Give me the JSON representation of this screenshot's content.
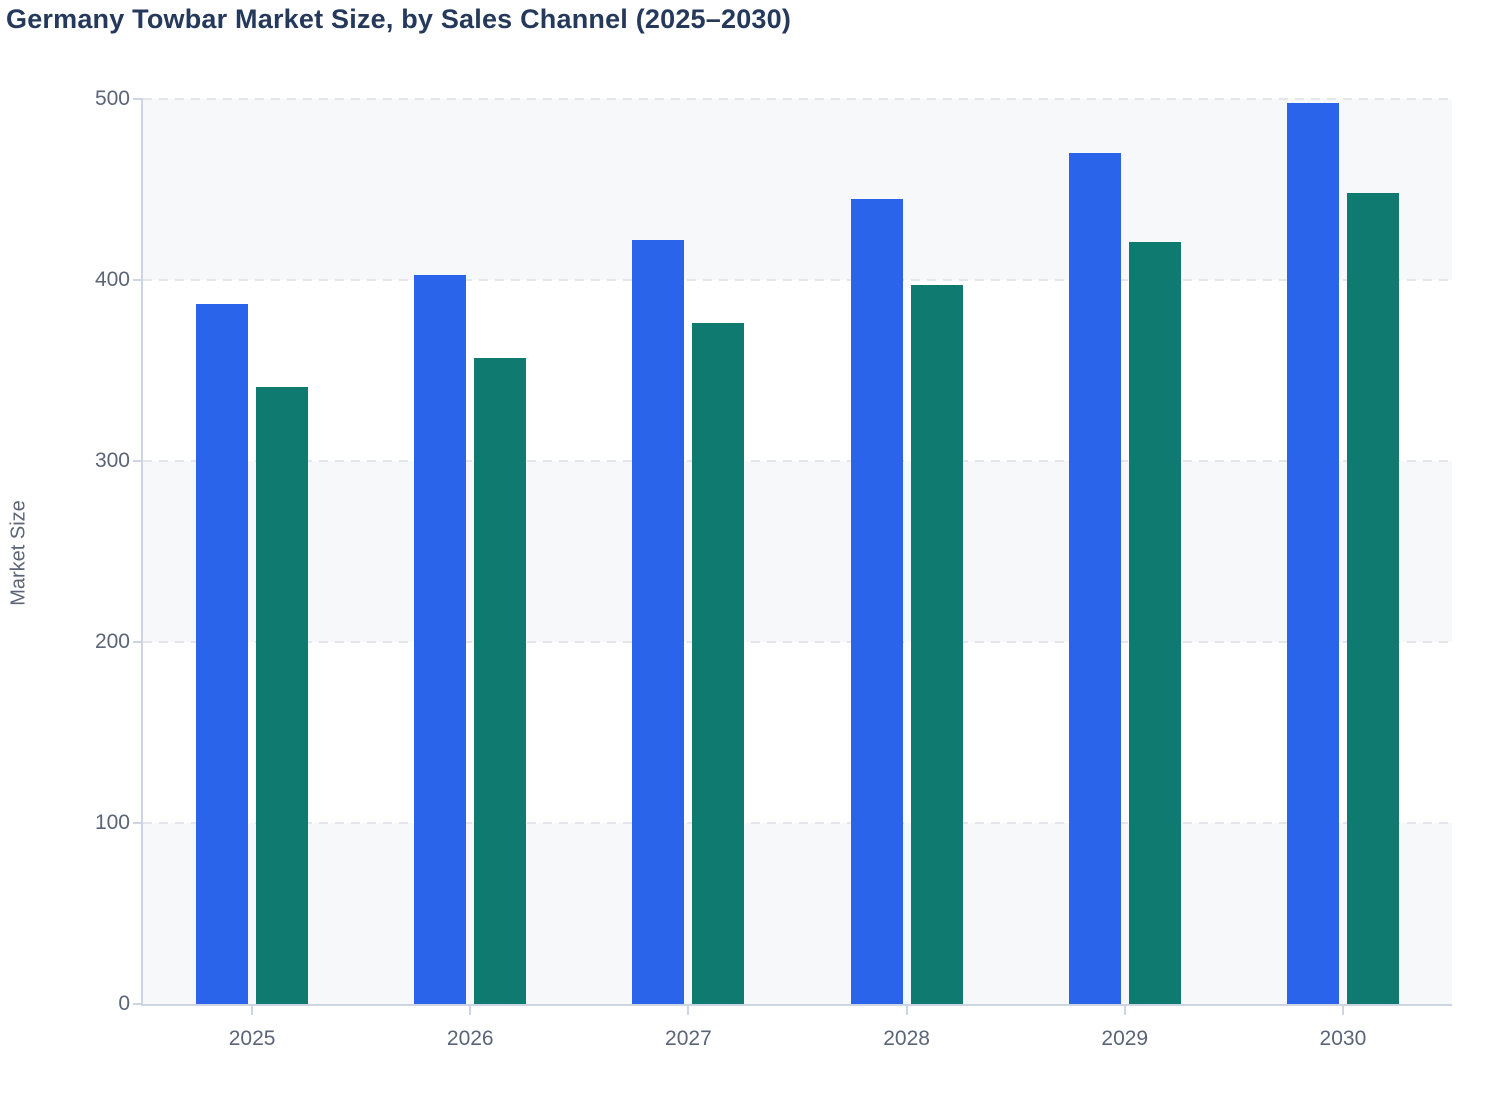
{
  "page": {
    "title": "Germany Towbar Market Size, by Sales Channel (2025–2030)"
  },
  "chart_data": {
    "type": "bar",
    "title": "Germany Towbar Market Size, by Sales Channel (2025–2030)",
    "xlabel": "",
    "ylabel": "Market Size",
    "categories": [
      "2025",
      "2026",
      "2027",
      "2028",
      "2029",
      "2030"
    ],
    "series": [
      {
        "name": "Series 1 (blue)",
        "color": "#2A64EA",
        "values": [
          387,
          403,
          422,
          445,
          470,
          498
        ]
      },
      {
        "name": "Series 2 (teal)",
        "color": "#0F7A6F",
        "values": [
          341,
          357,
          376,
          397,
          421,
          448
        ]
      }
    ],
    "ylim": [
      0,
      500
    ],
    "yticks": [
      0,
      100,
      200,
      300,
      400,
      500
    ],
    "grid": "horizontal-dashed",
    "legend_position": "none",
    "plot_bands": "alternating-horizontal"
  },
  "style": {
    "title_color": "#24395B",
    "axis_text_color": "#5B6577",
    "axis_line_color": "#CDD5E5",
    "gridline_color": "#E4E6EC",
    "band_color": "#F7F8FA",
    "background_color": "#FFFFFF",
    "bar_blue": "#2A64EA",
    "bar_teal": "#0F7A6F"
  }
}
